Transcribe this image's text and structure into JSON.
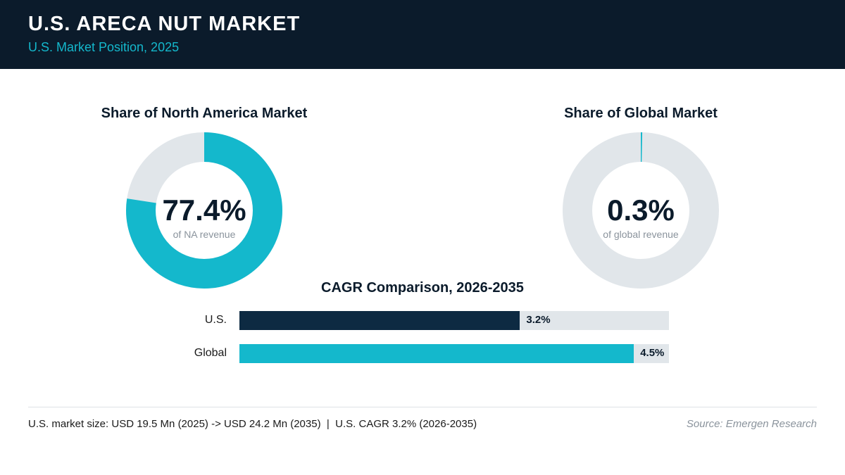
{
  "header": {
    "title": "U.S. ARECA NUT MARKET",
    "subtitle": "U.S. Market Position, 2025"
  },
  "colors": {
    "header_bg": "#0b1b2b",
    "accent": "#14b8cc",
    "navy": "#0d2a42",
    "track": "#e1e6ea"
  },
  "chart_data": [
    {
      "type": "pie",
      "title": "Share of North America Market",
      "value": 77.4,
      "value_label": "77.4%",
      "caption": "of NA revenue",
      "colors": [
        "#14b8cc",
        "#e1e6ea"
      ]
    },
    {
      "type": "pie",
      "title": "Share of Global Market",
      "value": 0.3,
      "value_label": "0.3%",
      "caption": "of global revenue",
      "colors": [
        "#14b8cc",
        "#e1e6ea"
      ]
    },
    {
      "type": "bar",
      "title": "CAGR Comparison, 2026-2035",
      "categories": [
        "U.S.",
        "Global"
      ],
      "values": [
        3.2,
        4.5
      ],
      "value_labels": [
        "3.2%",
        "4.5%"
      ],
      "colors": [
        "#0d2a42",
        "#14b8cc"
      ],
      "xlim": [
        0,
        4.9
      ]
    }
  ],
  "footer": {
    "note": "U.S. market size: USD 19.5 Mn (2025) -> USD 24.2 Mn (2035)  |  U.S. CAGR 3.2% (2026-2035)",
    "source": "Source: Emergen Research"
  }
}
